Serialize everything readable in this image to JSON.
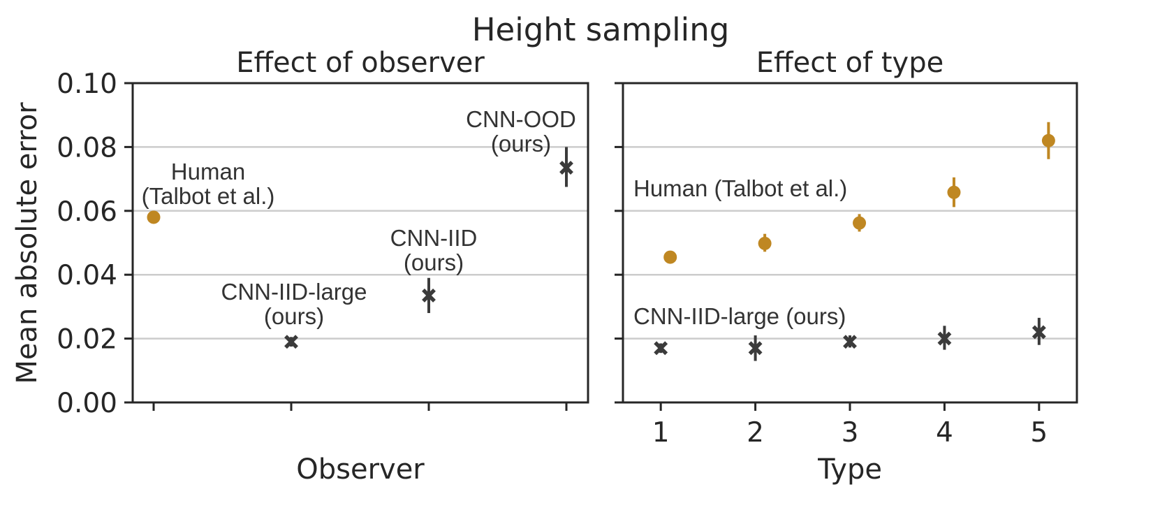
{
  "figure": {
    "title": "Height sampling",
    "colors": {
      "human": "#bf8722",
      "cnn": "#3b3b3b"
    }
  },
  "chart_data": [
    {
      "type": "scatter",
      "title": "Effect of observer",
      "xlabel": "Observer",
      "ylabel": "Mean absolute error",
      "ylim": [
        0,
        0.1
      ],
      "yticks": [
        "0.00",
        "0.02",
        "0.04",
        "0.06",
        "0.08",
        "0.10"
      ],
      "grid": "y",
      "categories": [
        "Human (Talbot et al.)",
        "CNN-IID-large (ours)",
        "CNN-IID (ours)",
        "CNN-OOD (ours)"
      ],
      "points": [
        {
          "category": "Human (Talbot et al.)",
          "label_lines": [
            "Human",
            "(Talbot et al.)"
          ],
          "y": 0.058,
          "err": [
            0.0575,
            0.0585
          ],
          "marker": "circle",
          "series": "human"
        },
        {
          "category": "CNN-IID-large (ours)",
          "label_lines": [
            "CNN-IID-large",
            "(ours)"
          ],
          "y": 0.019,
          "err": [
            0.0175,
            0.0205
          ],
          "marker": "x",
          "series": "cnn"
        },
        {
          "category": "CNN-IID (ours)",
          "label_lines": [
            "CNN-IID",
            "(ours)"
          ],
          "y": 0.0335,
          "err": [
            0.028,
            0.039
          ],
          "marker": "x",
          "series": "cnn"
        },
        {
          "category": "CNN-OOD (ours)",
          "label_lines": [
            "CNN-OOD",
            "(ours)"
          ],
          "y": 0.0735,
          "err": [
            0.0675,
            0.08
          ],
          "marker": "x",
          "series": "cnn"
        }
      ]
    },
    {
      "type": "scatter",
      "title": "Effect of type",
      "xlabel": "Type",
      "ylim": [
        0,
        0.1
      ],
      "grid": "y",
      "x": [
        1,
        2,
        3,
        4,
        5
      ],
      "series": [
        {
          "name": "Human (Talbot et al.)",
          "color_key": "human",
          "marker": "circle",
          "x_offset": 0.1,
          "values": [
            0.0455,
            0.0498,
            0.0562,
            0.0658,
            0.082
          ],
          "err_low": [
            0.044,
            0.0472,
            0.0535,
            0.0612,
            0.0762
          ],
          "err_high": [
            0.0468,
            0.0528,
            0.059,
            0.0705,
            0.0878
          ]
        },
        {
          "name": "CNN-IID-large (ours)",
          "color_key": "cnn",
          "marker": "x",
          "x_offset": 0.0,
          "values": [
            0.017,
            0.017,
            0.019,
            0.02,
            0.022
          ],
          "err_low": [
            0.0155,
            0.013,
            0.0172,
            0.0165,
            0.018
          ],
          "err_high": [
            0.0185,
            0.021,
            0.021,
            0.024,
            0.0265
          ]
        }
      ]
    }
  ]
}
